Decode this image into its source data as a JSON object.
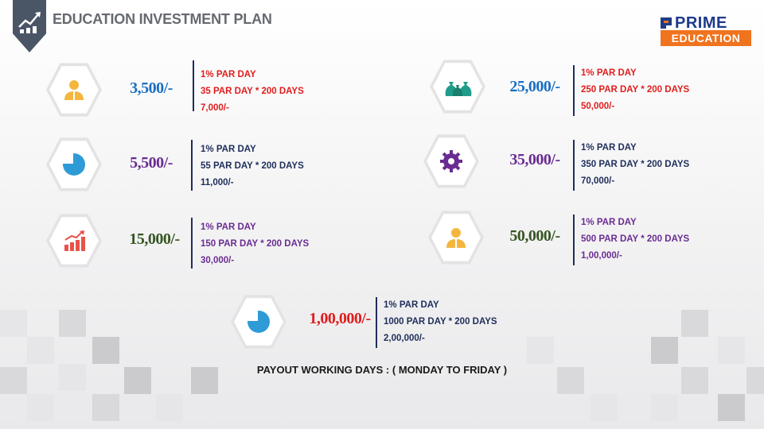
{
  "header": {
    "title": "EDUCATION INVESTMENT PLAN",
    "logo_line1": "PRIME",
    "logo_line2": "EDUCATION"
  },
  "plans": [
    {
      "amount": "3,500/-",
      "rate": "1% PAR DAY",
      "calc": "35 PAR DAY * 200 DAYS",
      "total": "7,000/-",
      "icon": "user-icon",
      "amount_color": "#1b6fc2",
      "text_color": "#e11d1d"
    },
    {
      "amount": "5,500/-",
      "rate": "1% PAR DAY",
      "calc": "55 PAR DAY * 200 DAYS",
      "total": "11,000/-",
      "icon": "pie-chart-icon",
      "amount_color": "#6a2c91",
      "text_color": "#1f2e5a"
    },
    {
      "amount": "15,000/-",
      "rate": "1% PAR DAY",
      "calc": "150 PAR DAY * 200 DAYS",
      "total": "30,000/-",
      "icon": "growth-chart-icon",
      "amount_color": "#375623",
      "text_color": "#6a2c91"
    },
    {
      "amount": "25,000/-",
      "rate": "1% PAR DAY",
      "calc": "250 PAR DAY * 200 DAYS",
      "total": "50,000/-",
      "icon": "money-bags-icon",
      "amount_color": "#1b6fc2",
      "text_color": "#e11d1d"
    },
    {
      "amount": "35,000/-",
      "rate": "1% PAR DAY",
      "calc": "350 PAR DAY * 200 DAYS",
      "total": "70,000/-",
      "icon": "gear-icon",
      "amount_color": "#6a2c91",
      "text_color": "#1f2e5a"
    },
    {
      "amount": "50,000/-",
      "rate": "1% PAR DAY",
      "calc": "500 PAR DAY * 200 DAYS",
      "total": "1,00,000/-",
      "icon": "user-icon",
      "amount_color": "#375623",
      "text_color": "#6a2c91"
    },
    {
      "amount": "1,00,000/-",
      "rate": "1% PAR DAY",
      "calc": "1000 PAR DAY * 200 DAYS",
      "total": "2,00,000/-",
      "icon": "pie-chart-icon",
      "amount_color": "#e11d1d",
      "text_color": "#1f2e5a"
    }
  ],
  "footer": {
    "note": "PAYOUT WORKING DAYS : ( MONDAY TO FRIDAY )"
  }
}
